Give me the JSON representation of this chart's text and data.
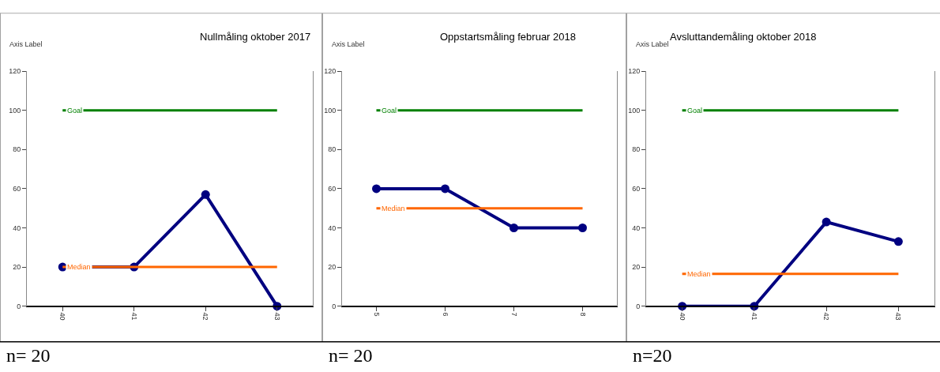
{
  "chart_data": [
    {
      "type": "line",
      "title": "Nullmåling oktober 2017",
      "ylabel": "Axis Label",
      "categories": [
        "40",
        "41",
        "42",
        "43"
      ],
      "series": [
        {
          "color": "#000080",
          "values": [
            20,
            20,
            57,
            0
          ],
          "marker": "circle"
        },
        {
          "name": "Goal",
          "color": "#008000",
          "values": [
            100,
            100,
            100,
            100
          ],
          "marker": "none"
        },
        {
          "name": "Median",
          "color": "#ff6600",
          "values": [
            20,
            20,
            20,
            20
          ],
          "marker": "none"
        }
      ],
      "ylim": [
        0,
        120
      ],
      "yticks": [
        0,
        20,
        40,
        60,
        80,
        100,
        120
      ],
      "annotations": [
        "n= 20"
      ]
    },
    {
      "type": "line",
      "title": "Oppstartsmåling februar 2018",
      "ylabel": "Axis Label",
      "categories": [
        "5",
        "6",
        "7",
        "8"
      ],
      "series": [
        {
          "color": "#000080",
          "values": [
            60,
            60,
            40,
            40
          ],
          "marker": "circle"
        },
        {
          "name": "Goal",
          "color": "#008000",
          "values": [
            100,
            100,
            100,
            100
          ],
          "marker": "none"
        },
        {
          "name": "Median",
          "color": "#ff6600",
          "values": [
            50,
            50,
            50,
            50
          ],
          "marker": "none"
        }
      ],
      "ylim": [
        0,
        120
      ],
      "yticks": [
        0,
        20,
        40,
        60,
        80,
        100,
        120
      ],
      "annotations": [
        "n= 20"
      ]
    },
    {
      "type": "line",
      "title": "Avsluttandemåling oktober 2018",
      "ylabel": "Axis Label",
      "categories": [
        "40",
        "41",
        "42",
        "43"
      ],
      "series": [
        {
          "color": "#000080",
          "values": [
            0,
            0,
            43,
            33
          ],
          "marker": "circle"
        },
        {
          "name": "Goal",
          "color": "#008000",
          "values": [
            100,
            100,
            100,
            100
          ],
          "marker": "none"
        },
        {
          "name": "Median",
          "color": "#ff6600",
          "values": [
            16.5,
            16.5,
            16.5,
            16.5
          ],
          "marker": "none"
        }
      ],
      "ylim": [
        0,
        120
      ],
      "yticks": [
        0,
        20,
        40,
        60,
        80,
        100,
        120
      ],
      "annotations": [
        "n=20"
      ]
    }
  ]
}
